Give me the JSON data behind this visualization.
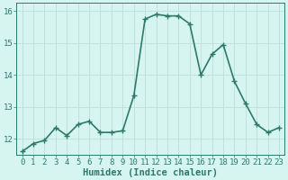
{
  "x": [
    0,
    1,
    2,
    3,
    4,
    5,
    6,
    7,
    8,
    9,
    10,
    11,
    12,
    13,
    14,
    15,
    16,
    17,
    18,
    19,
    20,
    21,
    22,
    23
  ],
  "y": [
    11.6,
    11.85,
    11.95,
    12.35,
    12.1,
    12.45,
    12.55,
    12.2,
    12.2,
    12.25,
    13.35,
    15.75,
    15.9,
    15.85,
    15.85,
    15.6,
    14.0,
    14.65,
    14.95,
    13.8,
    13.1,
    12.45,
    12.2,
    12.35
  ],
  "line_color": "#2d7a6a",
  "marker": "+",
  "marker_size": 4,
  "bg_color": "#d6f5f0",
  "grid_color_major": "#c0ddd8",
  "grid_color_minor": "#c0ddd8",
  "axis_color": "#2d7a6a",
  "xlabel": "Humidex (Indice chaleur)",
  "ylim": [
    11.5,
    16.25
  ],
  "xlim": [
    -0.5,
    23.5
  ],
  "yticks": [
    12,
    13,
    14,
    15,
    16
  ],
  "xticks": [
    0,
    1,
    2,
    3,
    4,
    5,
    6,
    7,
    8,
    9,
    10,
    11,
    12,
    13,
    14,
    15,
    16,
    17,
    18,
    19,
    20,
    21,
    22,
    23
  ],
  "font_size": 6.5,
  "xlabel_fontsize": 7.5,
  "linewidth": 1.2
}
